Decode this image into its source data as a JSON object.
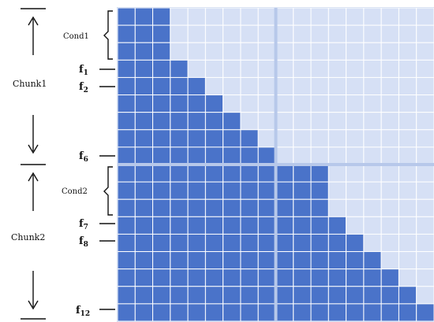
{
  "colors": {
    "filled": "#4a73c9",
    "empty": "#d6e0f5",
    "cell_line": "#ffffff",
    "block_gap": "#b7c8ea",
    "ink": "#111111"
  },
  "grid": {
    "rows": 18,
    "cols": 18
  },
  "chunks": [
    {
      "label": "Chunk1",
      "cond_label": "Cond1",
      "cond_rows": 3,
      "frames": [
        {
          "prefix": "f",
          "sub": "1"
        },
        {
          "prefix": "f",
          "sub": "2"
        },
        {
          "prefix": "f",
          "sub": "6"
        }
      ]
    },
    {
      "label": "Chunk2",
      "cond_label": "Cond2",
      "cond_rows": 3,
      "frames": [
        {
          "prefix": "f",
          "sub": "7"
        },
        {
          "prefix": "f",
          "sub": "8"
        },
        {
          "prefix": "f",
          "sub": "12"
        }
      ]
    }
  ]
}
